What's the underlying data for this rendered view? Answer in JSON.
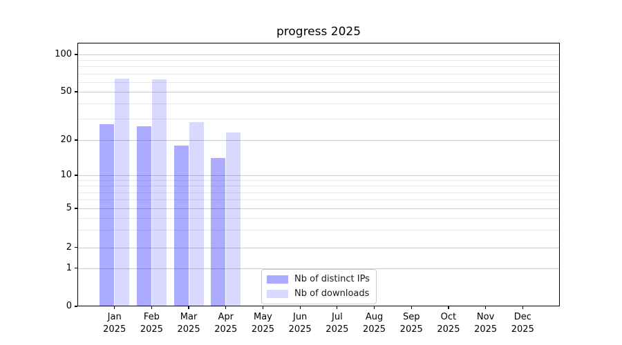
{
  "chart_data": {
    "type": "bar",
    "title": "progress 2025",
    "categories": [
      "Jan",
      "Feb",
      "Mar",
      "Apr",
      "May",
      "Jun",
      "Jul",
      "Aug",
      "Sep",
      "Oct",
      "Nov",
      "Dec"
    ],
    "x_year": "2025",
    "series": [
      {
        "name": "Nb of distinct IPs",
        "swatch_color": "#aaaaff",
        "fill_color": "rgba(0,0,255,0.33)",
        "values": [
          27,
          26,
          18,
          14,
          null,
          null,
          null,
          null,
          null,
          null,
          null,
          null
        ]
      },
      {
        "name": "Nb of downloads",
        "swatch_color": "#d9d9ff",
        "fill_color": "rgba(0,0,255,0.15)",
        "values": [
          64,
          63,
          28,
          23,
          null,
          null,
          null,
          null,
          null,
          null,
          null,
          null
        ]
      }
    ],
    "yscale": "symlog (logarithmic above ~1, linear segment down to 0)",
    "ylim": [
      0,
      125
    ],
    "yticks": [
      0,
      1,
      2,
      5,
      10,
      20,
      50,
      100
    ],
    "minor_yticks": [
      3,
      4,
      6,
      7,
      8,
      9,
      30,
      40,
      60,
      70,
      80,
      90
    ],
    "grid": "both",
    "legend_position": "lower center",
    "axis_color": "#000000",
    "major_grid_color": "#cccccc",
    "minor_grid_color": "#e8e8e8"
  }
}
